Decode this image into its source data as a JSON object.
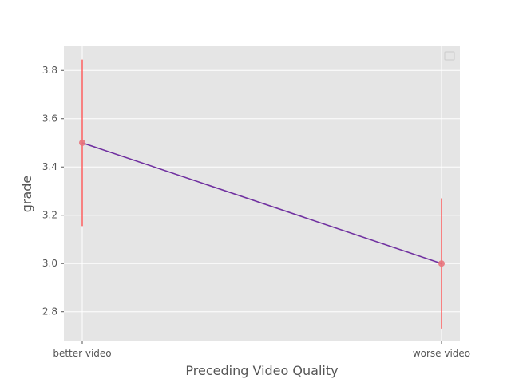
{
  "chart_data": {
    "type": "line",
    "title": "",
    "xlabel": "Preceding Video Quality",
    "ylabel": "grade",
    "categories": [
      "better video",
      "worse video"
    ],
    "series": [
      {
        "values": [
          3.5,
          3.0
        ],
        "error_low": [
          3.155,
          2.73
        ],
        "error_high": [
          3.845,
          3.27
        ],
        "line_color": "#7030a0",
        "marker_color": "#e8747c",
        "error_color": "#ff6060"
      }
    ],
    "ylim": [
      2.68,
      3.9
    ],
    "yticks": [
      2.8,
      3.0,
      3.2,
      3.4,
      3.6,
      3.8
    ],
    "ytick_labels": [
      "2.8",
      "3.0",
      "3.2",
      "3.4",
      "3.6",
      "3.8"
    ],
    "grid": true,
    "legend": "top-right (empty)",
    "colors": {
      "plot_background": "#e5e5e5",
      "grid": "#ffffff"
    }
  }
}
